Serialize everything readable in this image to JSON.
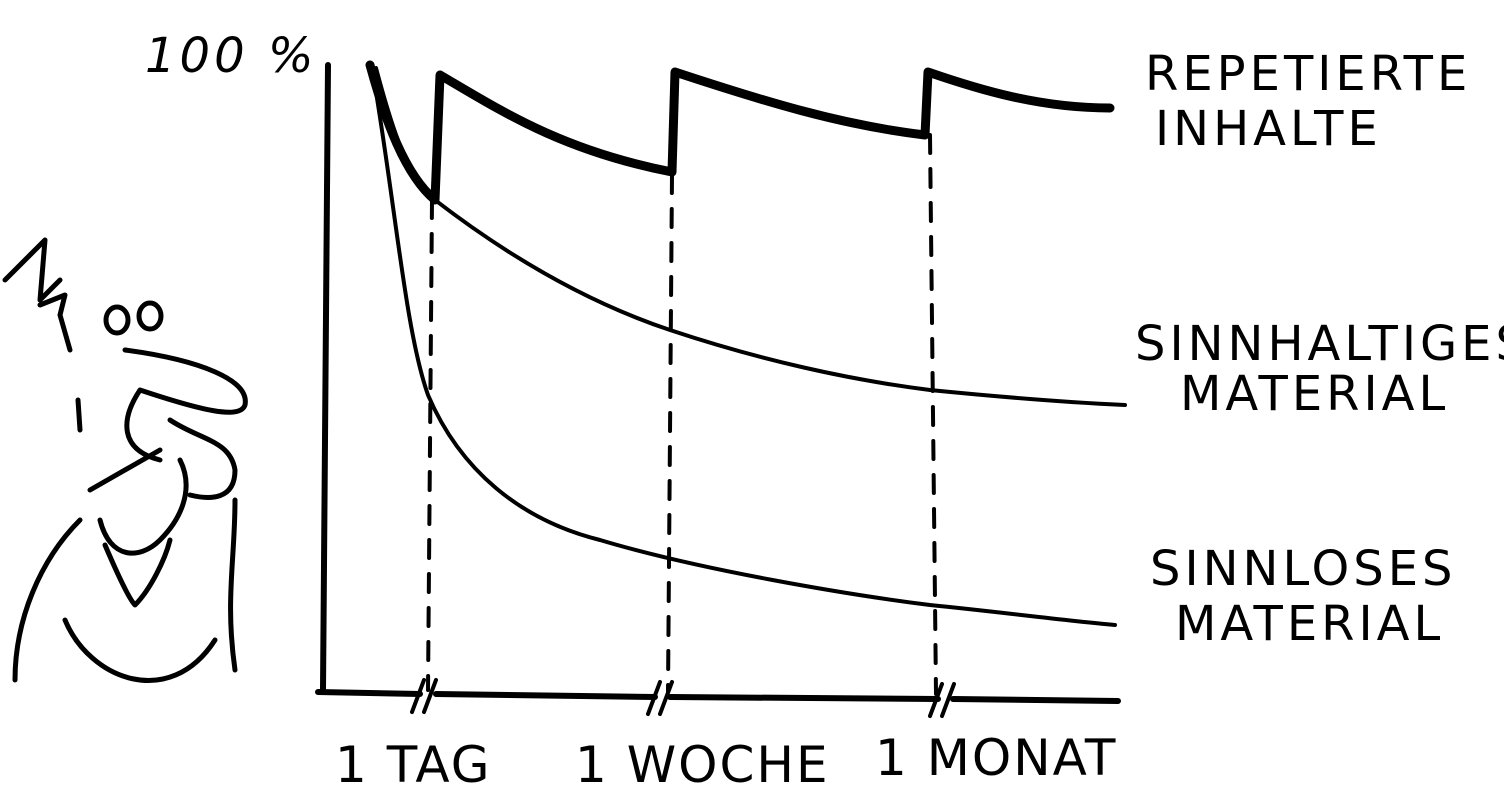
{
  "axis": {
    "top_label": "100 %"
  },
  "x_labels": [
    "1 TAG",
    "1 WOCHE",
    "1 MONAT"
  ],
  "curves": [
    {
      "label_lines": [
        "REPETIERTE",
        "INHALTE"
      ]
    },
    {
      "label_lines": [
        "SINNHALTIGES",
        "MATERIAL"
      ]
    },
    {
      "label_lines": [
        "SINNLOSES",
        "MATERIAL"
      ]
    }
  ]
}
